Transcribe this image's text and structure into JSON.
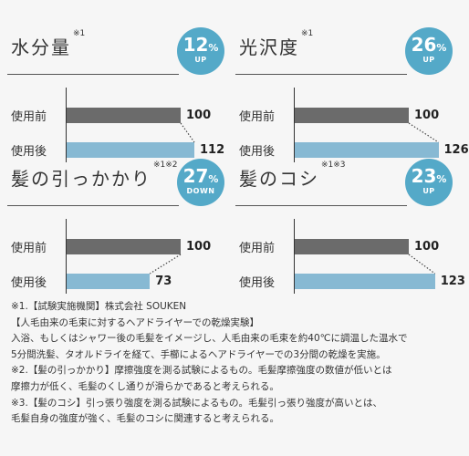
{
  "panels": [
    {
      "title": "水分量",
      "note": "※1",
      "badge_num": "12",
      "badge_pct": "%",
      "badge_dir": "UP"
    },
    {
      "title": "光沢度",
      "note": "※1",
      "badge_num": "26",
      "badge_pct": "%",
      "badge_dir": "UP"
    },
    {
      "title": "髪の引っかかり",
      "note": "※1※2",
      "badge_num": "27",
      "badge_pct": "%",
      "badge_dir": "DOWN"
    },
    {
      "title": "髪のコシ",
      "note": "※1※3",
      "badge_num": "23",
      "badge_pct": "%",
      "badge_dir": "UP"
    }
  ],
  "labels": {
    "before": "使用前",
    "after": "使用後"
  },
  "colors": {
    "before": "#6b6b6b",
    "after": "#87b9d3",
    "badge": "#54a9c8"
  },
  "chart_data": [
    {
      "type": "bar",
      "title": "水分量",
      "categories": [
        "使用前",
        "使用後"
      ],
      "values": [
        100,
        112
      ],
      "xlim": [
        0,
        140
      ]
    },
    {
      "type": "bar",
      "title": "光沢度",
      "categories": [
        "使用前",
        "使用後"
      ],
      "values": [
        100,
        126
      ],
      "xlim": [
        0,
        140
      ]
    },
    {
      "type": "bar",
      "title": "髪の引っかかり",
      "categories": [
        "使用前",
        "使用後"
      ],
      "values": [
        100,
        73
      ],
      "xlim": [
        0,
        140
      ]
    },
    {
      "type": "bar",
      "title": "髪のコシ",
      "categories": [
        "使用前",
        "使用後"
      ],
      "values": [
        100,
        123
      ],
      "xlim": [
        0,
        140
      ]
    }
  ],
  "notes": [
    "※1.【試験実施機関】株式会社 SOUKEN",
    "【人毛由来の毛束に対するヘアドライヤーでの乾燥実験】",
    "入浴、もしくはシャワー後の毛髪をイメージし、人毛由来の毛束を約40℃に調温した温水で",
    "5分間洗髪、タオルドライを経て、手櫛によるヘアドライヤーでの3分間の乾燥を実施。",
    "※2.【髪の引っかかり】摩擦強度を測る試験によるもの。毛髪摩擦強度の数値が低いとは",
    "摩擦力が低く、毛髪のくし通りが滑らかであると考えられる。",
    "※3.【髪のコシ】引っ張り強度を測る試験によるもの。毛髪引っ張り強度が高いとは、",
    "毛髪自身の強度が強く、毛髪のコシに関連すると考えられる。"
  ]
}
